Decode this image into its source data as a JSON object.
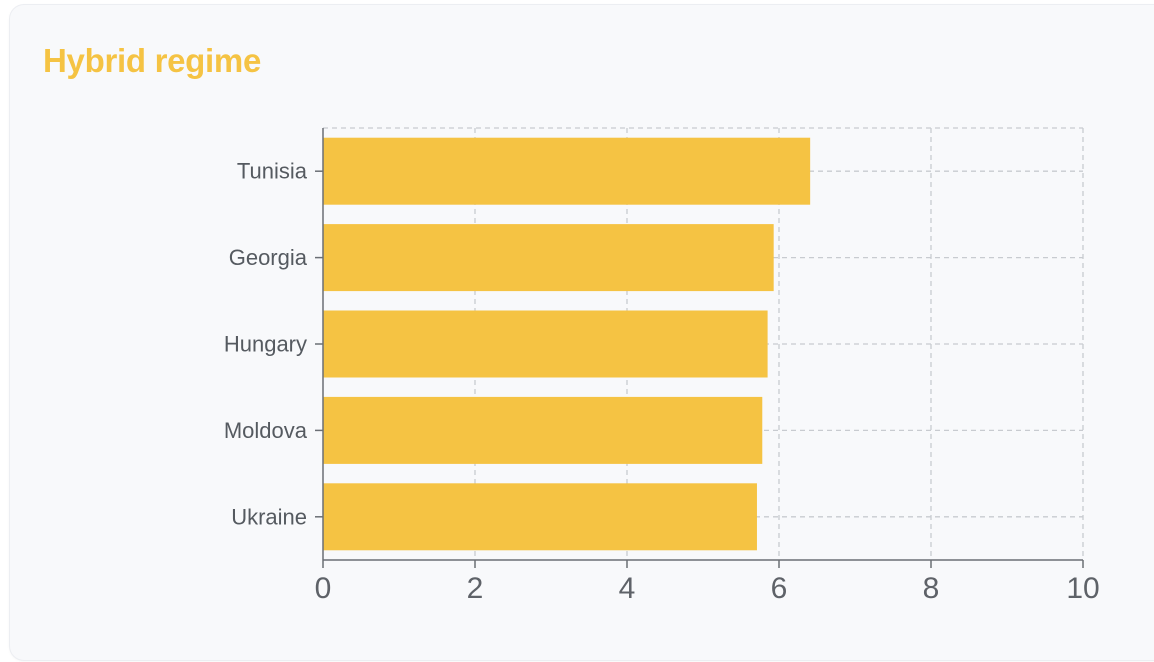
{
  "chart_data": {
    "type": "bar",
    "orientation": "horizontal",
    "title": "Hybrid regime",
    "categories": [
      "Tunisia",
      "Georgia",
      "Hungary",
      "Moldova",
      "Ukraine"
    ],
    "values": [
      6.41,
      5.93,
      5.85,
      5.78,
      5.71
    ],
    "xlim": [
      0,
      10
    ],
    "xticks": [
      "0",
      "2",
      "4",
      "6",
      "8",
      "10"
    ],
    "grid": true,
    "xlabel": "",
    "ylabel": "",
    "colors": {
      "bar": "#f5c343",
      "title": "#f5c343",
      "grid": "#c8cbd0",
      "axis": "#6b6f75"
    }
  }
}
